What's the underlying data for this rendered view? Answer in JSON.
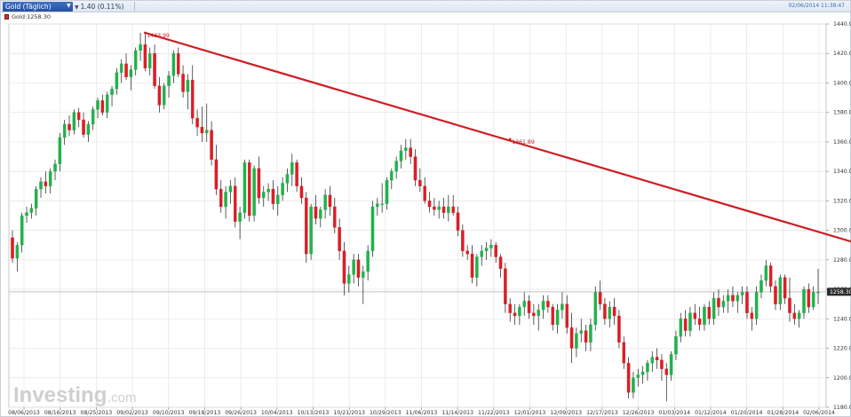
{
  "header": {
    "instrument_label": "Gold (Täglich)",
    "change_label": "1.40 (0.11%)",
    "timestamp": "02/06/2014 11:38:47",
    "legend_label": "Gold:1258.30"
  },
  "colors": {
    "up": "#22b14c",
    "down": "#d91f26",
    "trendline": "#cc1f24",
    "price_flag": "#2b2b2b",
    "grid": "#e4e4e4"
  },
  "chart_data": {
    "type": "candlestick",
    "title": "Gold (Täglich)",
    "current_price": 1258.3,
    "y_ticks": [
      1180,
      1200,
      1220,
      1240,
      1260,
      1280,
      1300,
      1320,
      1340,
      1360,
      1380,
      1400,
      1420,
      1440
    ],
    "y_tick_labels": [
      "1180.00",
      "1200.00",
      "1220.00",
      "1240.00",
      "1260.00",
      "1280.00",
      "1300.00",
      "1320.00",
      "1340.00",
      "1360.00",
      "1380.00",
      "1400.00",
      "1420.00",
      "1440.00"
    ],
    "ylim": [
      1180,
      1440
    ],
    "grid": true,
    "x_tick_labels": [
      "08/06/2013",
      "08/16/2013",
      "08/25/2013",
      "09/02/2013",
      "09/10/2013",
      "09/18/2013",
      "09/26/2013",
      "10/04/2013",
      "10/13/2013",
      "10/21/2013",
      "10/29/2013",
      "11/06/2013",
      "11/14/2013",
      "11/22/2013",
      "12/01/2013",
      "12/09/2013",
      "12/17/2013",
      "12/26/2013",
      "01/03/2014",
      "01/12/2014",
      "01/20/2014",
      "01/28/2014",
      "02/06/2014"
    ],
    "annotations": [
      {
        "text": "1433.99",
        "price": 1433.99,
        "candle_index": 28
      },
      {
        "text": "1361.89",
        "price": 1361.89,
        "candle_index": 105
      }
    ],
    "trendline": {
      "from_index": 28,
      "from_price": 1433.99,
      "to_index": 230,
      "to_price": 1242
    },
    "candles": [
      [
        1295,
        1300,
        1278,
        1281
      ],
      [
        1281,
        1292,
        1272,
        1290
      ],
      [
        1290,
        1312,
        1285,
        1310
      ],
      [
        1310,
        1316,
        1305,
        1312
      ],
      [
        1312,
        1318,
        1308,
        1315
      ],
      [
        1315,
        1330,
        1310,
        1328
      ],
      [
        1328,
        1336,
        1322,
        1333
      ],
      [
        1333,
        1340,
        1325,
        1330
      ],
      [
        1330,
        1342,
        1325,
        1340
      ],
      [
        1340,
        1348,
        1334,
        1345
      ],
      [
        1345,
        1366,
        1340,
        1363
      ],
      [
        1363,
        1375,
        1358,
        1372
      ],
      [
        1372,
        1378,
        1364,
        1368
      ],
      [
        1368,
        1382,
        1365,
        1380
      ],
      [
        1380,
        1383,
        1370,
        1375
      ],
      [
        1375,
        1380,
        1363,
        1365
      ],
      [
        1365,
        1374,
        1360,
        1372
      ],
      [
        1372,
        1384,
        1368,
        1382
      ],
      [
        1382,
        1390,
        1376,
        1388
      ],
      [
        1388,
        1392,
        1378,
        1380
      ],
      [
        1380,
        1394,
        1376,
        1392
      ],
      [
        1392,
        1398,
        1384,
        1396
      ],
      [
        1396,
        1410,
        1392,
        1407
      ],
      [
        1407,
        1416,
        1400,
        1413
      ],
      [
        1413,
        1420,
        1402,
        1404
      ],
      [
        1404,
        1412,
        1395,
        1409
      ],
      [
        1409,
        1424,
        1405,
        1422
      ],
      [
        1422,
        1434,
        1415,
        1426
      ],
      [
        1426,
        1434,
        1408,
        1410
      ],
      [
        1410,
        1424,
        1405,
        1420
      ],
      [
        1420,
        1426,
        1396,
        1398
      ],
      [
        1398,
        1404,
        1380,
        1385
      ],
      [
        1385,
        1400,
        1382,
        1398
      ],
      [
        1398,
        1408,
        1390,
        1405
      ],
      [
        1405,
        1422,
        1400,
        1420
      ],
      [
        1420,
        1424,
        1404,
        1406
      ],
      [
        1406,
        1412,
        1390,
        1394
      ],
      [
        1394,
        1406,
        1382,
        1402
      ],
      [
        1402,
        1412,
        1372,
        1376
      ],
      [
        1376,
        1382,
        1364,
        1370
      ],
      [
        1370,
        1384,
        1360,
        1366
      ],
      [
        1366,
        1386,
        1360,
        1368
      ],
      [
        1368,
        1374,
        1344,
        1348
      ],
      [
        1348,
        1358,
        1324,
        1328
      ],
      [
        1328,
        1334,
        1312,
        1316
      ],
      [
        1316,
        1330,
        1308,
        1326
      ],
      [
        1326,
        1334,
        1318,
        1330
      ],
      [
        1330,
        1336,
        1302,
        1306
      ],
      [
        1306,
        1316,
        1294,
        1312
      ],
      [
        1312,
        1348,
        1308,
        1346
      ],
      [
        1346,
        1348,
        1306,
        1310
      ],
      [
        1310,
        1344,
        1306,
        1342
      ],
      [
        1342,
        1350,
        1318,
        1322
      ],
      [
        1322,
        1330,
        1316,
        1326
      ],
      [
        1326,
        1332,
        1320,
        1328
      ],
      [
        1328,
        1334,
        1314,
        1318
      ],
      [
        1318,
        1330,
        1310,
        1324
      ],
      [
        1324,
        1336,
        1320,
        1332
      ],
      [
        1332,
        1342,
        1326,
        1338
      ],
      [
        1338,
        1352,
        1330,
        1346
      ],
      [
        1346,
        1348,
        1326,
        1330
      ],
      [
        1330,
        1336,
        1318,
        1322
      ],
      [
        1322,
        1326,
        1278,
        1284
      ],
      [
        1284,
        1318,
        1280,
        1316
      ],
      [
        1316,
        1324,
        1304,
        1308
      ],
      [
        1308,
        1316,
        1302,
        1314
      ],
      [
        1314,
        1328,
        1308,
        1324
      ],
      [
        1324,
        1330,
        1310,
        1316
      ],
      [
        1316,
        1322,
        1298,
        1302
      ],
      [
        1302,
        1308,
        1280,
        1286
      ],
      [
        1286,
        1292,
        1256,
        1264
      ],
      [
        1264,
        1276,
        1258,
        1270
      ],
      [
        1270,
        1284,
        1264,
        1280
      ],
      [
        1280,
        1284,
        1262,
        1268
      ],
      [
        1268,
        1276,
        1250,
        1272
      ],
      [
        1272,
        1290,
        1266,
        1286
      ],
      [
        1286,
        1320,
        1282,
        1316
      ],
      [
        1316,
        1322,
        1310,
        1318
      ],
      [
        1318,
        1332,
        1312,
        1318
      ],
      [
        1318,
        1336,
        1314,
        1334
      ],
      [
        1334,
        1342,
        1328,
        1340
      ],
      [
        1340,
        1350,
        1335,
        1347
      ],
      [
        1347,
        1358,
        1342,
        1354
      ],
      [
        1354,
        1362,
        1348,
        1356
      ],
      [
        1356,
        1362,
        1345,
        1350
      ],
      [
        1350,
        1355,
        1330,
        1334
      ],
      [
        1334,
        1342,
        1326,
        1330
      ],
      [
        1330,
        1336,
        1318,
        1320
      ],
      [
        1320,
        1326,
        1312,
        1316
      ],
      [
        1316,
        1322,
        1310,
        1314
      ],
      [
        1314,
        1320,
        1308,
        1316
      ],
      [
        1316,
        1322,
        1308,
        1312
      ],
      [
        1312,
        1324,
        1306,
        1316
      ],
      [
        1316,
        1324,
        1310,
        1312
      ],
      [
        1312,
        1316,
        1296,
        1300
      ],
      [
        1300,
        1304,
        1282,
        1286
      ],
      [
        1286,
        1290,
        1280,
        1284
      ],
      [
        1284,
        1290,
        1264,
        1268
      ],
      [
        1268,
        1284,
        1262,
        1282
      ],
      [
        1282,
        1290,
        1276,
        1286
      ],
      [
        1286,
        1292,
        1280,
        1288
      ],
      [
        1288,
        1294,
        1282,
        1290
      ],
      [
        1290,
        1292,
        1278,
        1282
      ],
      [
        1282,
        1284,
        1268,
        1274
      ],
      [
        1274,
        1278,
        1244,
        1250
      ],
      [
        1250,
        1254,
        1238,
        1244
      ],
      [
        1244,
        1250,
        1236,
        1242
      ],
      [
        1242,
        1250,
        1236,
        1248
      ],
      [
        1248,
        1258,
        1242,
        1252
      ],
      [
        1252,
        1256,
        1240,
        1244
      ],
      [
        1244,
        1250,
        1236,
        1242
      ],
      [
        1242,
        1250,
        1232,
        1246
      ],
      [
        1246,
        1256,
        1240,
        1252
      ],
      [
        1252,
        1256,
        1244,
        1248
      ],
      [
        1248,
        1250,
        1232,
        1236
      ],
      [
        1236,
        1250,
        1230,
        1246
      ],
      [
        1246,
        1258,
        1240,
        1250
      ],
      [
        1250,
        1256,
        1230,
        1234
      ],
      [
        1234,
        1244,
        1210,
        1220
      ],
      [
        1220,
        1234,
        1214,
        1230
      ],
      [
        1230,
        1240,
        1224,
        1232
      ],
      [
        1232,
        1236,
        1218,
        1224
      ],
      [
        1224,
        1240,
        1218,
        1236
      ],
      [
        1236,
        1262,
        1232,
        1258
      ],
      [
        1258,
        1266,
        1246,
        1250
      ],
      [
        1250,
        1254,
        1236,
        1240
      ],
      [
        1240,
        1252,
        1234,
        1248
      ],
      [
        1248,
        1254,
        1236,
        1242
      ],
      [
        1242,
        1246,
        1220,
        1224
      ],
      [
        1224,
        1228,
        1206,
        1210
      ],
      [
        1210,
        1214,
        1186,
        1190
      ],
      [
        1190,
        1204,
        1186,
        1200
      ],
      [
        1200,
        1206,
        1194,
        1202
      ],
      [
        1202,
        1208,
        1196,
        1204
      ],
      [
        1204,
        1212,
        1198,
        1210
      ],
      [
        1210,
        1218,
        1204,
        1214
      ],
      [
        1214,
        1220,
        1206,
        1212
      ],
      [
        1212,
        1216,
        1198,
        1206
      ],
      [
        1206,
        1210,
        1184,
        1202
      ],
      [
        1202,
        1218,
        1198,
        1216
      ],
      [
        1216,
        1232,
        1212,
        1228
      ],
      [
        1228,
        1244,
        1224,
        1240
      ],
      [
        1240,
        1246,
        1228,
        1232
      ],
      [
        1232,
        1248,
        1228,
        1244
      ],
      [
        1244,
        1250,
        1236,
        1240
      ],
      [
        1240,
        1248,
        1232,
        1236
      ],
      [
        1236,
        1250,
        1232,
        1248
      ],
      [
        1248,
        1252,
        1236,
        1240
      ],
      [
        1240,
        1258,
        1236,
        1254
      ],
      [
        1254,
        1260,
        1242,
        1248
      ],
      [
        1248,
        1256,
        1244,
        1252
      ],
      [
        1252,
        1260,
        1244,
        1256
      ],
      [
        1256,
        1262,
        1248,
        1252
      ],
      [
        1252,
        1258,
        1244,
        1256
      ],
      [
        1256,
        1262,
        1250,
        1258
      ],
      [
        1258,
        1262,
        1240,
        1244
      ],
      [
        1244,
        1248,
        1232,
        1240
      ],
      [
        1240,
        1262,
        1236,
        1258
      ],
      [
        1258,
        1270,
        1254,
        1266
      ],
      [
        1266,
        1280,
        1262,
        1276
      ],
      [
        1276,
        1278,
        1258,
        1262
      ],
      [
        1262,
        1266,
        1246,
        1250
      ],
      [
        1250,
        1270,
        1246,
        1268
      ],
      [
        1268,
        1270,
        1250,
        1254
      ],
      [
        1254,
        1268,
        1238,
        1244
      ],
      [
        1244,
        1250,
        1236,
        1240
      ],
      [
        1240,
        1246,
        1234,
        1244
      ],
      [
        1244,
        1262,
        1240,
        1260
      ],
      [
        1260,
        1264,
        1244,
        1248
      ],
      [
        1248,
        1262,
        1246,
        1258
      ],
      [
        1258,
        1274,
        1250,
        1258
      ]
    ]
  }
}
